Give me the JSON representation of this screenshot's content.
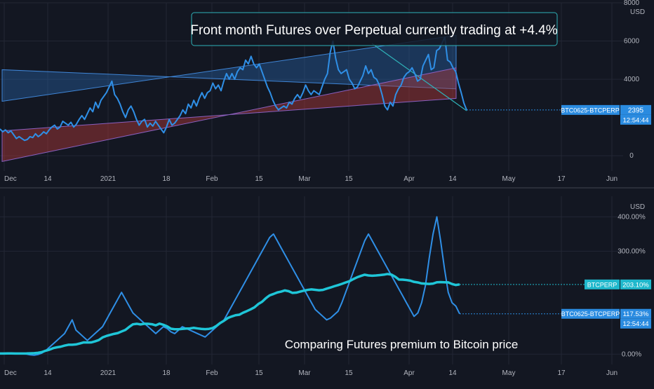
{
  "colors": {
    "background": "#131722",
    "grid": "#232734",
    "axis_text": "#b2b5be",
    "spread_line": "#2f8fe6",
    "channel_upper": "#2a6fc0",
    "channel_lower": "#b33a3a",
    "perp_line": "#1fc6d8",
    "perp_badge": "#1fb8cc",
    "spread_badge": "#2a8be0",
    "annotation_border": "#2fb2b8",
    "annotation_bg": "#131722"
  },
  "chart_data": [
    {
      "type": "line",
      "panel": "top",
      "annotation": "Front month Futures over Perpetual currently trading at +4.4%",
      "unit": "USD",
      "x_ticks": [
        "Dec",
        "14",
        "2021",
        "18",
        "Feb",
        "15",
        "Mar",
        "15",
        "Apr",
        "14",
        "May",
        "17",
        "Jun"
      ],
      "y_ticks": [
        "8000",
        "6000",
        "4000",
        "0"
      ],
      "y_range": [
        -800,
        8000
      ],
      "series": [
        {
          "name": "BTC0625-BTCPERP",
          "values": [
            1400,
            1250,
            1350,
            1200,
            1300,
            1100,
            900,
            1000,
            900,
            800,
            850,
            1000,
            950,
            1150,
            1000,
            1100,
            1250,
            1150,
            1350,
            1500,
            1600,
            1400,
            1500,
            1800,
            1700,
            1600,
            1750,
            1500,
            1650,
            1900,
            2100,
            1900,
            2200,
            2500,
            2300,
            2800,
            2500,
            2900,
            3100,
            3300,
            3600,
            3900,
            3200,
            3000,
            2700,
            2300,
            2000,
            2400,
            2600,
            2300,
            1900,
            1600,
            1800,
            1900,
            1500,
            1700,
            1550,
            1800,
            1600,
            1400,
            1200,
            1500,
            1900,
            1600,
            1700,
            1900,
            2100,
            2400,
            2200,
            2700,
            2500,
            2900,
            2600,
            3000,
            3300,
            3000,
            3300,
            3400,
            3800,
            3500,
            3700,
            3400,
            3900,
            4300,
            4000,
            4300,
            4000,
            4400,
            4600,
            4500,
            5000,
            4800,
            5200,
            4800,
            4600,
            4800,
            4400,
            4000,
            3600,
            3300,
            2900,
            2600,
            2400,
            2500,
            2600,
            2500,
            2800,
            2700,
            3000,
            3200,
            3000,
            3300,
            3700,
            3400,
            3200,
            3400,
            3300,
            3200,
            3600,
            4000,
            4300,
            5400,
            6000,
            5100,
            4500,
            4300,
            4400,
            4500,
            4000,
            3800,
            3500,
            3600,
            3900,
            4200,
            4700,
            4300,
            4500,
            4100,
            4000,
            3700,
            3200,
            2600,
            2400,
            2800,
            2600,
            3200,
            3500,
            3700,
            4100,
            4300,
            4400,
            4600,
            4300,
            3900,
            4000,
            4700,
            5000,
            5300,
            4500,
            4600,
            5500,
            5600,
            5900,
            6200,
            5000,
            4900,
            4600,
            4400,
            3800,
            3300,
            2750,
            2395
          ]
        }
      ],
      "channel": {
        "upper_band": {
          "start": [
            2850,
            4500
          ],
          "end": [
            6300,
            3500
          ]
        },
        "lower_band": {
          "start": [
            1300,
            -300
          ],
          "end": [
            4600,
            3000
          ]
        }
      },
      "price_labels": [
        {
          "name": "BTC0625-BTCPERP",
          "value": "2395",
          "time": "12:54:44"
        }
      ]
    },
    {
      "type": "line",
      "panel": "bottom",
      "annotation": "Comparing Futures premium to Bitcoin price",
      "unit": "USD",
      "x_ticks": [
        "Dec",
        "14",
        "2021",
        "18",
        "Feb",
        "15",
        "Mar",
        "15",
        "Apr",
        "14",
        "May",
        "17",
        "Jun"
      ],
      "y_ticks": [
        "400.00%",
        "300.00%",
        "0.00%"
      ],
      "y_range": [
        -30,
        460
      ],
      "series": [
        {
          "name": "BTCPERP",
          "values": [
            2.0,
            1.9,
            2.1,
            2.2,
            2.0,
            1.9,
            2.0,
            2.1,
            2.5,
            3.0,
            4.0,
            6.0,
            10.0,
            13.0,
            17.5,
            20.0,
            21.8,
            25.0,
            27.3,
            27.5,
            28.4,
            31.1,
            34.2,
            34.0,
            34.2,
            37.3,
            41.1,
            48.8,
            53.0,
            56.2,
            59.1,
            61.4,
            66.1,
            70.6,
            79.3,
            87.0,
            88.5,
            86.6,
            88.7,
            88.4,
            87.2,
            83.9,
            88.9,
            85.6,
            81.0,
            74.2,
            72.6,
            72.5,
            73.5,
            74.7,
            75.0,
            76.6,
            75.0,
            73.7,
            72.9,
            73.7,
            76.1,
            82.6,
            91.1,
            97.7,
            105.4,
            109.8,
            113.4,
            114.9,
            120.8,
            125.5,
            130.6,
            136.6,
            146.0,
            152.7,
            163.1,
            171.4,
            175.3,
            179.8,
            182.3,
            185.7,
            183.4,
            178.4,
            179.2,
            182.1,
            184.9,
            187.3,
            188.8,
            187.5,
            186.1,
            187.2,
            190.9,
            194.1,
            197.9,
            201.1,
            204.8,
            208.9,
            212.5,
            218.6,
            223.9,
            227.9,
            231.4,
            229.3,
            228.6,
            229.2,
            230.3,
            231.5,
            233.5,
            231.9,
            225.9,
            217.4,
            217.0,
            215.9,
            214.2,
            210.6,
            208.9,
            206.0,
            205.2,
            204.5,
            205.6,
            209.4,
            209.8,
            209.4,
            209.1,
            204.4,
            201.4,
            203.1
          ]
        },
        {
          "name": "BTC0625-BTCPERP",
          "values": [
            2.0,
            1.0,
            3.0,
            2.0,
            1.5,
            1.0,
            0.5,
            0.0,
            -2.0,
            -3.0,
            -1.0,
            3.0,
            10.0,
            20.0,
            30.0,
            40.0,
            50.0,
            60.0,
            80.0,
            100.0,
            70.0,
            60.0,
            50.0,
            40.0,
            50.0,
            60.0,
            70.0,
            80.0,
            100.0,
            120.0,
            140.0,
            160.0,
            180.0,
            160.0,
            140.0,
            120.0,
            110.0,
            100.0,
            90.0,
            80.0,
            70.0,
            60.0,
            70.0,
            80.0,
            75.0,
            65.0,
            60.0,
            70.0,
            80.0,
            75.0,
            70.0,
            65.0,
            60.0,
            55.0,
            50.0,
            60.0,
            70.0,
            80.0,
            90.0,
            100.0,
            120.0,
            140.0,
            160.0,
            180.0,
            200.0,
            220.0,
            240.0,
            260.0,
            280.0,
            300.0,
            320.0,
            340.0,
            350.0,
            330.0,
            310.0,
            290.0,
            270.0,
            250.0,
            230.0,
            210.0,
            190.0,
            170.0,
            150.0,
            130.0,
            120.0,
            110.0,
            100.0,
            105.0,
            115.0,
            125.0,
            150.0,
            180.0,
            210.0,
            240.0,
            270.0,
            300.0,
            330.0,
            350.0,
            330.0,
            310.0,
            290.0,
            270.0,
            250.0,
            230.0,
            210.0,
            190.0,
            170.0,
            150.0,
            130.0,
            110.0,
            120.0,
            150.0,
            200.0,
            280.0,
            350.0,
            400.0,
            330.0,
            250.0,
            180.0,
            150.0,
            140.0,
            117.53
          ]
        }
      ],
      "price_labels": [
        {
          "name": "BTCPERP",
          "value": "203.10%"
        },
        {
          "name": "BTC0625-BTCPERP",
          "value": "117.53%",
          "time": "12:54:44"
        }
      ]
    }
  ]
}
